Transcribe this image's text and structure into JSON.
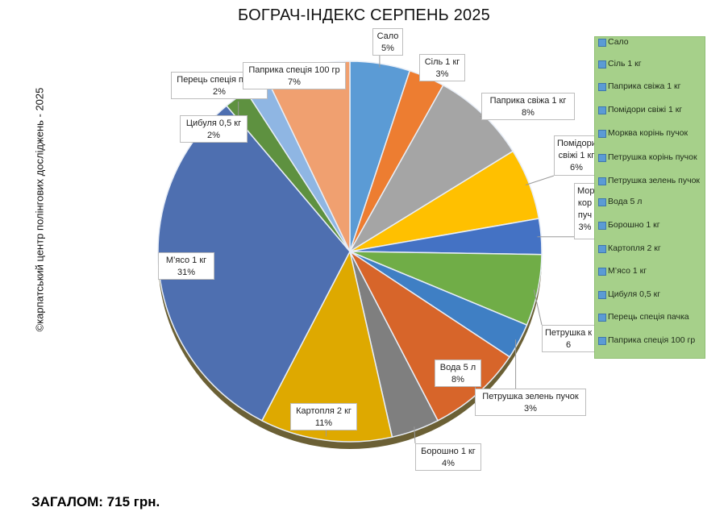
{
  "title": "БОГРАЧ-ІНДЕКС СЕРПЕНЬ 2025",
  "credit": "©карпатський центр полінгових досліджень - 2025",
  "total": "ЗАГАЛОМ: 715 грн.",
  "colors": {
    "legend_background": "#a6d08a",
    "legend_swatch": "#5b9bd5"
  },
  "chart_data": {
    "type": "pie",
    "title": "БОГРАЧ-ІНДЕКС СЕРПЕНЬ 2025",
    "legend_position": "right",
    "slices": [
      {
        "label": "Сало",
        "percent": "5%",
        "value": 5,
        "color": "#5b9bd5"
      },
      {
        "label": "Сіль 1 кг",
        "percent": "3%",
        "value": 3,
        "color": "#ed7d31"
      },
      {
        "label": "Паприка свіжа 1 кг",
        "percent": "8%",
        "value": 8,
        "color": "#a5a5a5"
      },
      {
        "label": "Помідори свіжі 1 кг",
        "percent": "6%",
        "value": 6,
        "color": "#ffc000"
      },
      {
        "label": "Морква корінь пучок",
        "percent": "3%",
        "value": 3,
        "color": "#4472c4"
      },
      {
        "label": "Петрушка корінь пучок",
        "percent": "6%",
        "value": 6,
        "color": "#70ad47"
      },
      {
        "label": "Петрушка зелень пучок",
        "percent": "3%",
        "value": 3,
        "color": "#3f7fc4"
      },
      {
        "label": "Вода 5 л",
        "percent": "8%",
        "value": 8,
        "color": "#d7652a"
      },
      {
        "label": "Борошно 1 кг",
        "percent": "4%",
        "value": 4,
        "color": "#7f7f7f"
      },
      {
        "label": "Картопля 2 кг",
        "percent": "11%",
        "value": 11,
        "color": "#dea900"
      },
      {
        "label": "М’ясо 1 кг",
        "percent": "31%",
        "value": 31,
        "color": "#4e6fb0"
      },
      {
        "label": "Цибуля 0,5 кг",
        "percent": "2%",
        "value": 2,
        "color": "#5e9140"
      },
      {
        "label": "Перець спеція пачка",
        "percent": "2%",
        "value": 2,
        "color": "#8fb6e3"
      },
      {
        "label": "Паприка спеція 100 гр",
        "percent": "7%",
        "value": 7,
        "color": "#f0a070"
      }
    ],
    "callouts": [
      {
        "line1": "Сало",
        "line2": "5%"
      },
      {
        "line1": "Сіль 1 кг",
        "line2": "3%"
      },
      {
        "line1": "Паприка свіжа 1 кг",
        "line2": "8%"
      },
      {
        "line1": "Помідори",
        "line2": "свіжі 1 кг",
        "line3": "6%"
      },
      {
        "line1": "Мор",
        "line2": "кор",
        "line3": "пуч",
        "line4": "3%"
      },
      {
        "line1": "Петрушка к",
        "line2": "6"
      },
      {
        "line1": "Петрушка зелень пучок",
        "line2": "3%"
      },
      {
        "line1": "Вода 5 л",
        "line2": "8%"
      },
      {
        "line1": "Борошно 1 кг",
        "line2": "4%"
      },
      {
        "line1": "Картопля 2 кг",
        "line2": "11%"
      },
      {
        "line1": "М’ясо 1 кг",
        "line2": "31%"
      },
      {
        "line1": "Цибуля 0,5 кг",
        "line2": "2%"
      },
      {
        "line1": "Перець спеція пачка",
        "line2": "2%"
      },
      {
        "line1": "Паприка спеція 100 гр",
        "line2": "7%"
      }
    ]
  }
}
